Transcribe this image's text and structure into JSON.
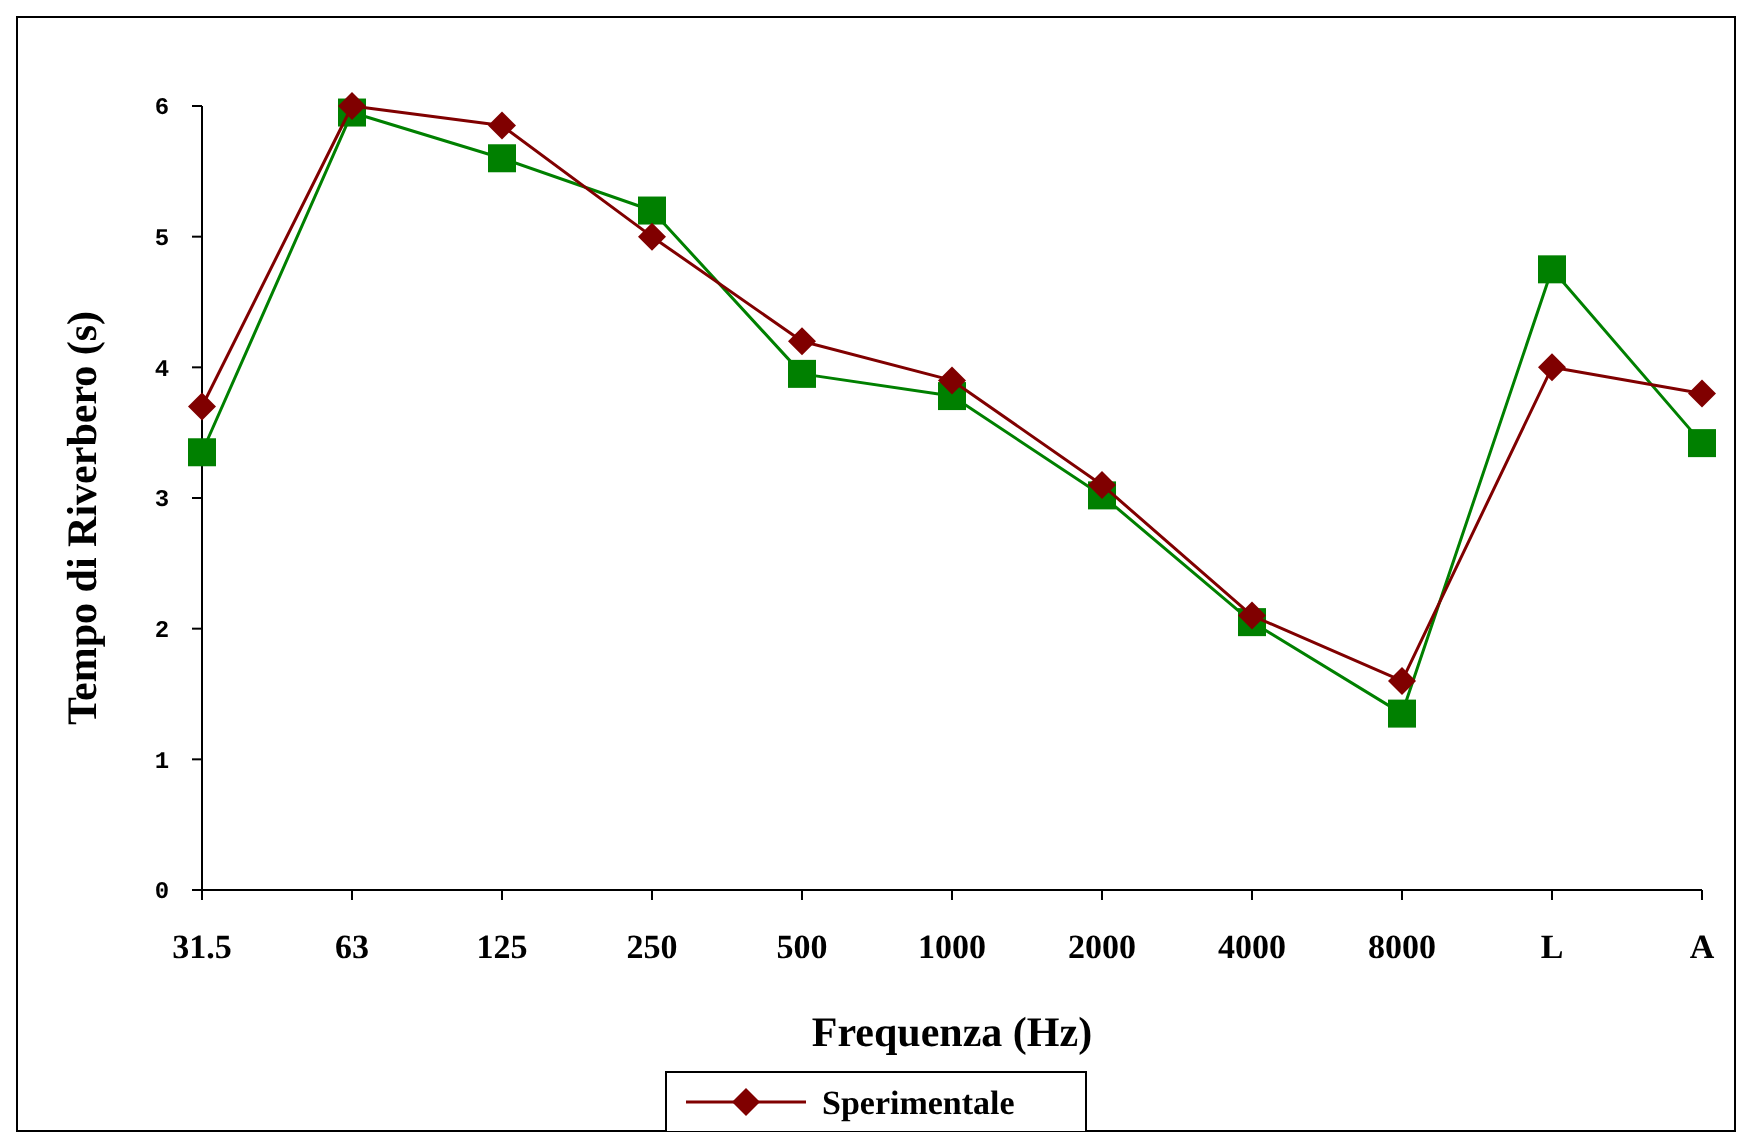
{
  "chart_data": {
    "type": "line",
    "xlabel": "Frequenza (Hz)",
    "ylabel": "Tempo di Riverbero (s)",
    "categories": [
      "31.5",
      "63",
      "125",
      "250",
      "500",
      "1000",
      "2000",
      "4000",
      "8000",
      "L",
      "A"
    ],
    "series": [
      {
        "name": "Sperimentale",
        "color": "#800000",
        "marker": "diamond",
        "values": [
          3.7,
          6.0,
          5.85,
          5.0,
          4.2,
          3.9,
          3.1,
          2.1,
          1.6,
          4.0,
          3.8
        ]
      },
      {
        "color": "#008000",
        "marker": "square",
        "values": [
          3.35,
          5.95,
          5.6,
          5.2,
          3.95,
          3.78,
          3.02,
          2.05,
          1.35,
          4.75,
          3.42
        ]
      }
    ],
    "ylim": [
      0,
      6
    ],
    "yticks": [
      0,
      1,
      2,
      3,
      4,
      5,
      6
    ],
    "grid": false,
    "legend": "bottom"
  }
}
